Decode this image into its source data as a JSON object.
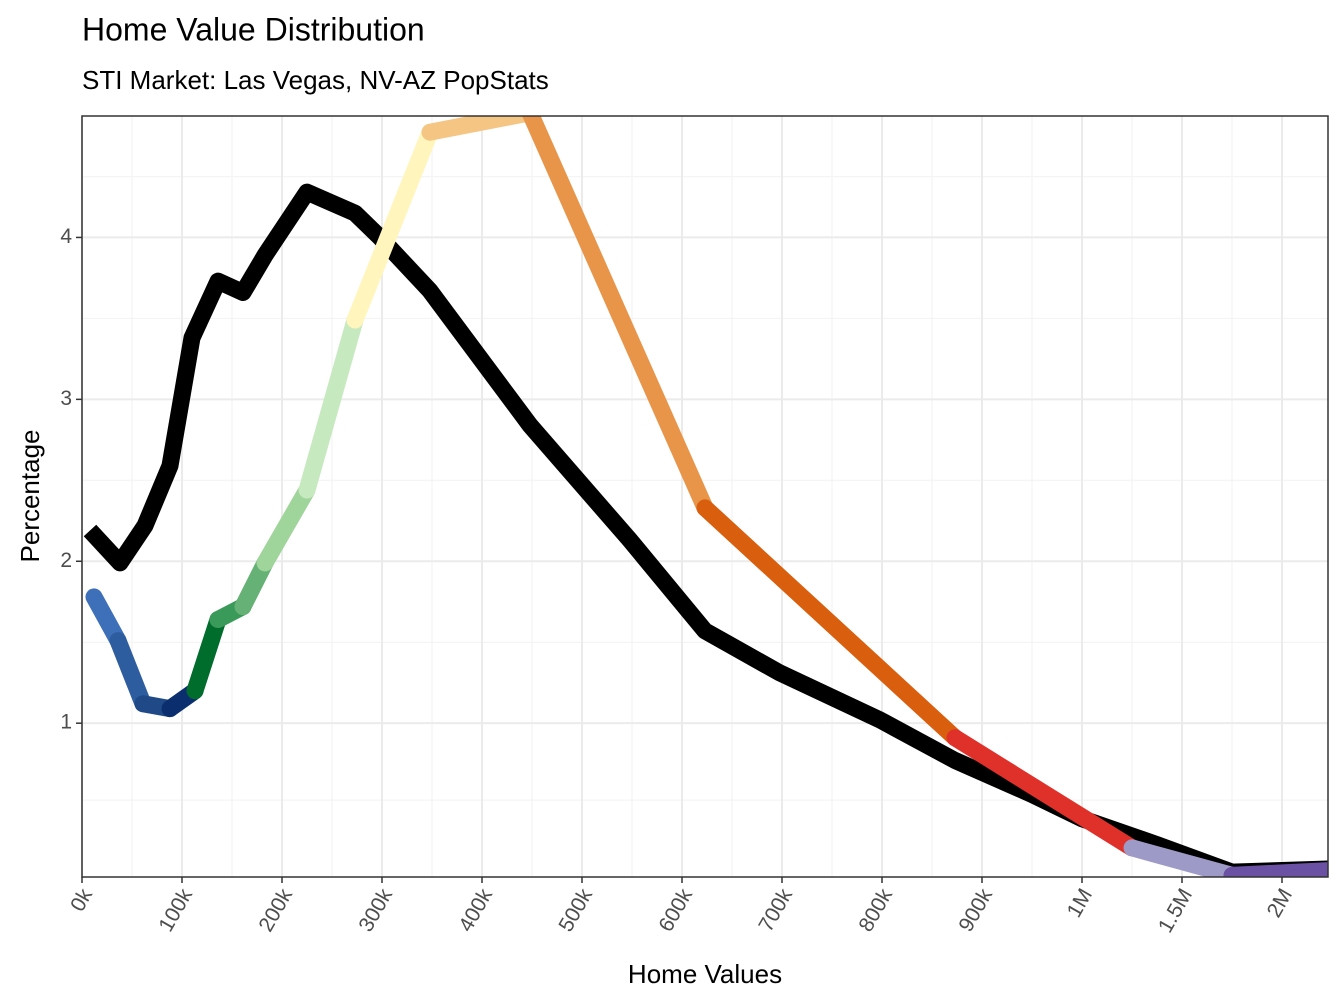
{
  "chart_data": {
    "type": "line",
    "title": "Home Value Distribution",
    "subtitle": "STI Market: Las Vegas, NV-AZ PopStats",
    "x_label": "Home Values",
    "y_label": "Percentage",
    "xlim": [
      0,
      2240000
    ],
    "ylim": [
      0.05,
      4.75
    ],
    "xticks": [
      {
        "value": 0,
        "label": "0k"
      },
      {
        "value": 100000,
        "label": "100k"
      },
      {
        "value": 200000,
        "label": "200k"
      },
      {
        "value": 300000,
        "label": "300k"
      },
      {
        "value": 400000,
        "label": "400k"
      },
      {
        "value": 500000,
        "label": "500k"
      },
      {
        "value": 600000,
        "label": "600k"
      },
      {
        "value": 700000,
        "label": "700k"
      },
      {
        "value": 800000,
        "label": "800k"
      },
      {
        "value": 900000,
        "label": "900k"
      },
      {
        "value": 1000000,
        "label": "1M"
      },
      {
        "value": 1500000,
        "label": "1.5M"
      },
      {
        "value": 2000000,
        "label": "2M"
      }
    ],
    "yticks": [
      1,
      2,
      3,
      4
    ],
    "grid": true,
    "series": [
      {
        "color": "#000000",
        "x": [
          8000,
          38000,
          63000,
          88000,
          110000,
          136000,
          161000,
          183000,
          225000,
          273000,
          298000,
          348000,
          448000,
          548000,
          623000,
          698000,
          798000,
          873000,
          950000,
          1000000,
          1375000,
          1750000,
          2000000,
          2240000
        ],
        "values": [
          2.19,
          1.99,
          2.22,
          2.59,
          3.38,
          3.73,
          3.66,
          3.89,
          4.28,
          4.15,
          4.0,
          3.67,
          2.84,
          2.13,
          1.57,
          1.31,
          1.02,
          0.77,
          0.56,
          0.41,
          0.25,
          0.08,
          0.09,
          0.1
        ]
      },
      {
        "colors": [
          "#4a86d4",
          "#3d70b8",
          "#2e5d9f",
          "#1f4a87",
          "#0b2f6e",
          "#006d2c",
          "#3a9a59",
          "#66b176",
          "#9fd49a",
          "#c7e9c0",
          "#fff5bd",
          "#f5c583",
          "#e8954a",
          "#d95f0e",
          "#e0302a",
          "#9e9ac8",
          "#6a51a3"
        ],
        "x": [
          12000,
          36000,
          61000,
          88000,
          113000,
          136000,
          161000,
          183000,
          225000,
          273000,
          348000,
          448000,
          623000,
          873000,
          1250000,
          1750000,
          2240000
        ],
        "values": [
          1.78,
          1.51,
          1.12,
          1.09,
          1.2,
          1.64,
          1.72,
          1.99,
          2.44,
          3.49,
          4.65,
          4.77,
          2.33,
          0.91,
          0.23,
          0.06,
          0.09
        ]
      }
    ]
  }
}
